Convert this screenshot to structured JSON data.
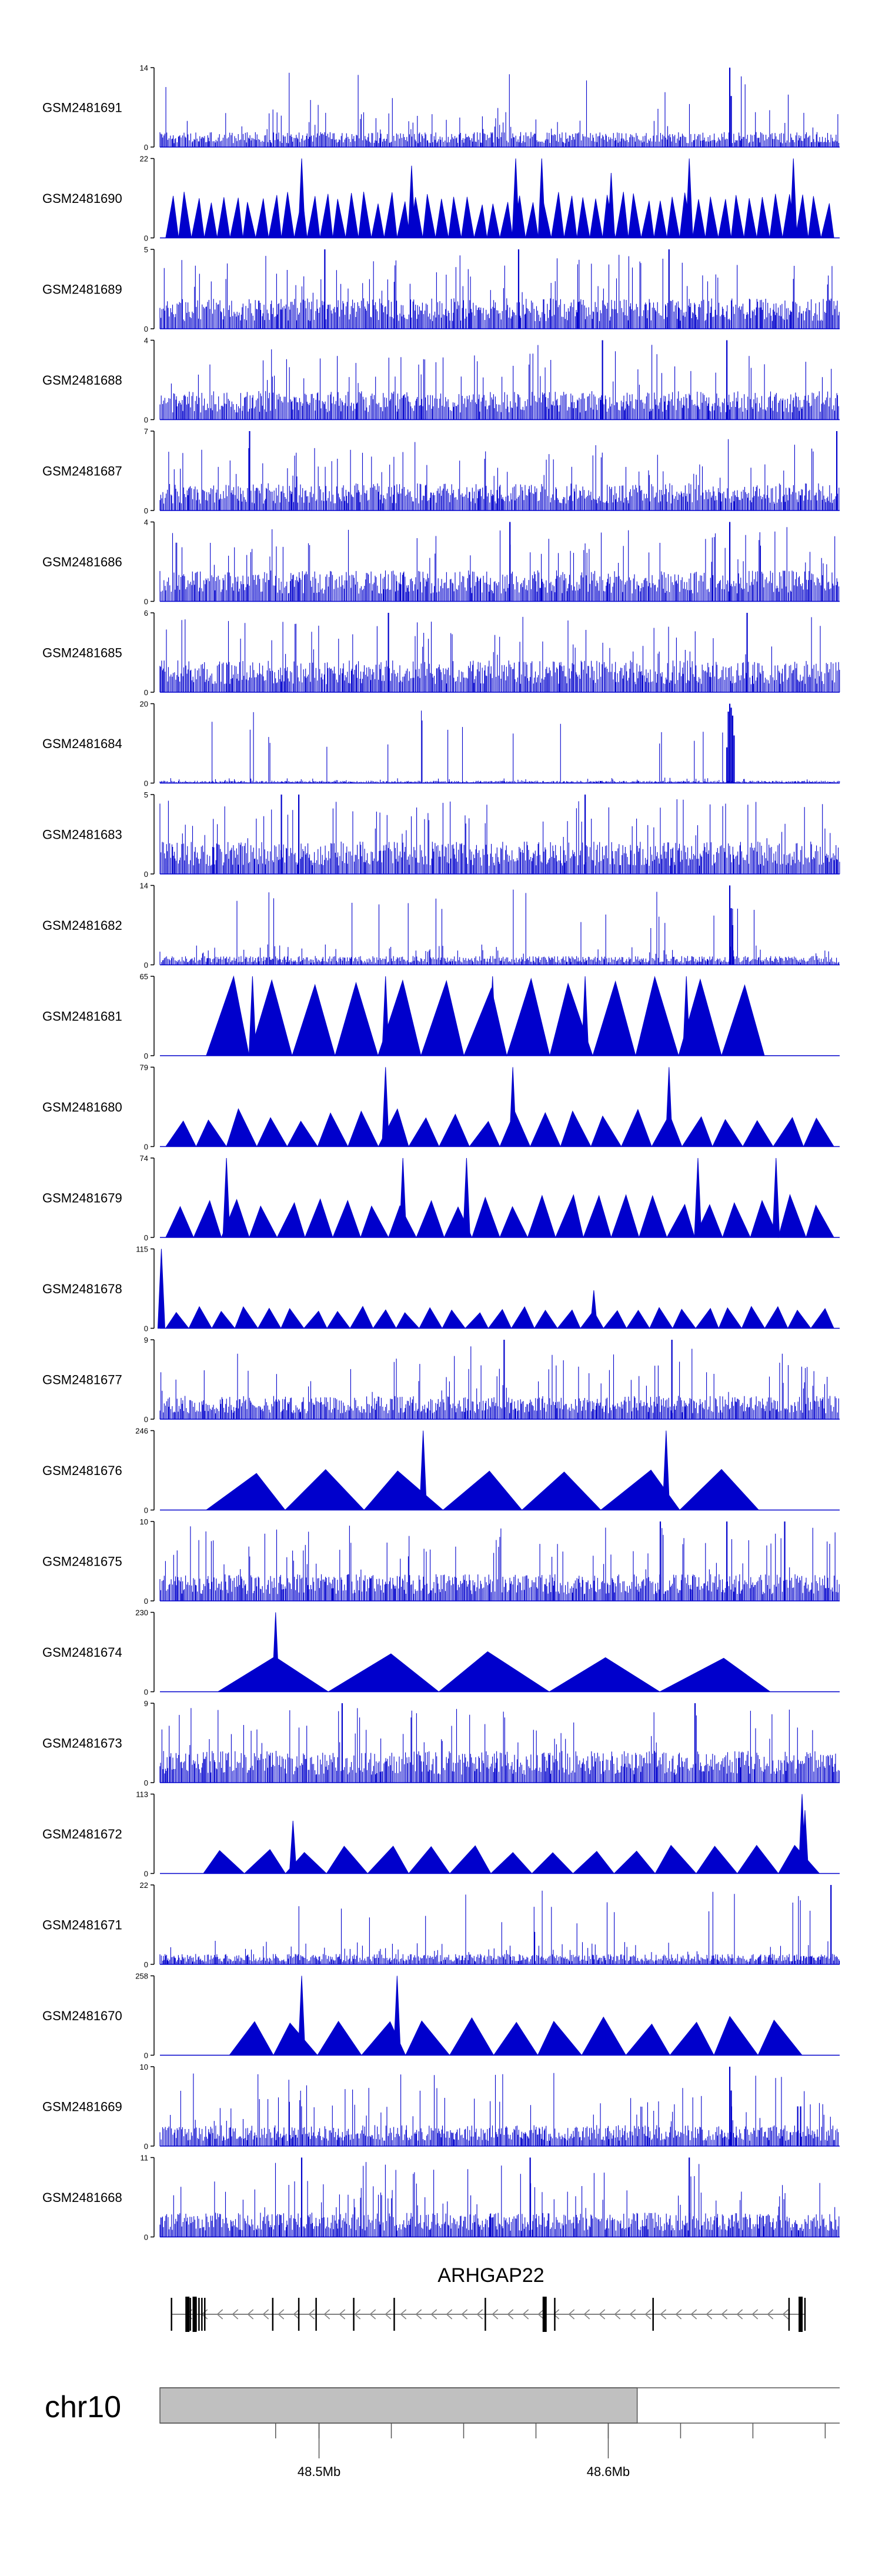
{
  "colors": {
    "signal": "#0000CC",
    "axis": "#000000",
    "gene": "#000000",
    "intron": "#808080",
    "ideogram_fill": "#C0C0C0",
    "ideogram_border": "#555555",
    "background": "#FFFFFF"
  },
  "chart_data": {
    "type": "area",
    "title": "",
    "xlabel": "chr10",
    "ylabel": "signal",
    "x_range_mb": [
      48.445,
      48.68
    ],
    "tracks": [
      {
        "name": "GSM2481691",
        "ylim": [
          0,
          14
        ],
        "style": "dense",
        "base": 2.2,
        "spikes": [
          [
            48.642,
            14
          ],
          [
            48.6425,
            9
          ]
        ]
      },
      {
        "name": "GSM2481690",
        "ylim": [
          0,
          22
        ],
        "style": "triangles",
        "n": 52,
        "ampMin": 9,
        "ampMax": 13,
        "peaks": [
          [
            48.494,
            22
          ],
          [
            48.568,
            22
          ],
          [
            48.577,
            22
          ],
          [
            48.628,
            22
          ],
          [
            48.664,
            22
          ],
          [
            48.532,
            20
          ],
          [
            48.601,
            18
          ]
        ]
      },
      {
        "name": "GSM2481689",
        "ylim": [
          0,
          5
        ],
        "style": "dense",
        "base": 1.6,
        "spikes": [
          [
            48.502,
            5
          ],
          [
            48.569,
            5
          ],
          [
            48.621,
            5
          ]
        ]
      },
      {
        "name": "GSM2481688",
        "ylim": [
          0,
          4
        ],
        "style": "dense",
        "base": 1.2,
        "spikes": [
          [
            48.598,
            4
          ],
          [
            48.641,
            4
          ]
        ]
      },
      {
        "name": "GSM2481687",
        "ylim": [
          0,
          7
        ],
        "style": "dense",
        "base": 2,
        "spikes": [
          [
            48.476,
            7
          ],
          [
            48.679,
            7
          ]
        ]
      },
      {
        "name": "GSM2481686",
        "ylim": [
          0,
          4
        ],
        "style": "dense",
        "base": 1.3,
        "spikes": [
          [
            48.566,
            4
          ],
          [
            48.642,
            4
          ]
        ]
      },
      {
        "name": "GSM2481685",
        "ylim": [
          0,
          6
        ],
        "style": "dense",
        "base": 2,
        "spikes": [
          [
            48.524,
            6
          ],
          [
            48.648,
            6
          ]
        ]
      },
      {
        "name": "GSM2481684",
        "ylim": [
          0,
          20
        ],
        "style": "dense",
        "base": 0.5,
        "spikes": [
          [
            48.6415,
            18
          ],
          [
            48.642,
            20
          ],
          [
            48.6425,
            19
          ],
          [
            48.643,
            17
          ],
          [
            48.6435,
            12
          ],
          [
            48.641,
            9
          ]
        ]
      },
      {
        "name": "GSM2481683",
        "ylim": [
          0,
          5
        ],
        "style": "dense",
        "base": 1.7,
        "spikes": [
          [
            48.487,
            5
          ],
          [
            48.493,
            5
          ],
          [
            48.592,
            5
          ]
        ]
      },
      {
        "name": "GSM2481682",
        "ylim": [
          0,
          14
        ],
        "style": "dense",
        "base": 1.3,
        "spikes": [
          [
            48.642,
            14
          ],
          [
            48.6425,
            10
          ],
          [
            48.643,
            7
          ]
        ]
      },
      {
        "name": "GSM2481681",
        "ylim": [
          0,
          65
        ],
        "style": "triangles",
        "n": 13,
        "ampMin": 55,
        "ampMax": 65,
        "start": 48.461,
        "end": 48.654,
        "peaks": [
          [
            48.477,
            65
          ],
          [
            48.523,
            65
          ],
          [
            48.56,
            65
          ],
          [
            48.592,
            65
          ],
          [
            48.627,
            65
          ]
        ]
      },
      {
        "name": "GSM2481680",
        "ylim": [
          0,
          79
        ],
        "style": "triangles",
        "n": 22,
        "ampMin": 25,
        "ampMax": 38,
        "peaks": [
          [
            48.523,
            79
          ],
          [
            48.567,
            79
          ],
          [
            48.621,
            79
          ]
        ]
      },
      {
        "name": "GSM2481679",
        "ylim": [
          0,
          74
        ],
        "style": "triangles",
        "n": 24,
        "ampMin": 28,
        "ampMax": 40,
        "peaks": [
          [
            48.468,
            74
          ],
          [
            48.529,
            74
          ],
          [
            48.551,
            74
          ],
          [
            48.631,
            74
          ],
          [
            48.658,
            74
          ]
        ]
      },
      {
        "name": "GSM2481678",
        "ylim": [
          0,
          115
        ],
        "style": "triangles",
        "n": 29,
        "ampMin": 22,
        "ampMax": 32,
        "peaks": [
          [
            48.4455,
            115
          ],
          [
            48.595,
            55
          ]
        ]
      },
      {
        "name": "GSM2481677",
        "ylim": [
          0,
          9
        ],
        "style": "dense",
        "base": 2.2,
        "spikes": [
          [
            48.564,
            9
          ],
          [
            48.622,
            9
          ]
        ]
      },
      {
        "name": "GSM2481676",
        "ylim": [
          0,
          246
        ],
        "style": "triangles",
        "n": 7,
        "ampMin": 110,
        "ampMax": 130,
        "start": 48.461,
        "end": 48.652,
        "peaks": [
          [
            48.536,
            246
          ],
          [
            48.62,
            246
          ]
        ]
      },
      {
        "name": "GSM2481675",
        "ylim": [
          0,
          10
        ],
        "style": "dense",
        "base": 2.8,
        "spikes": [
          [
            48.618,
            10
          ],
          [
            48.641,
            10
          ],
          [
            48.661,
            10
          ]
        ]
      },
      {
        "name": "GSM2481674",
        "ylim": [
          0,
          230
        ],
        "style": "triangles",
        "n": 5,
        "ampMin": 95,
        "ampMax": 120,
        "start": 48.465,
        "end": 48.656,
        "peaks": [
          [
            48.485,
            230
          ]
        ]
      },
      {
        "name": "GSM2481673",
        "ylim": [
          0,
          9
        ],
        "style": "dense",
        "base": 3,
        "spikes": [
          [
            48.508,
            9
          ],
          [
            48.63,
            9
          ]
        ]
      },
      {
        "name": "GSM2481672",
        "ylim": [
          0,
          113
        ],
        "style": "triangles",
        "n": 15,
        "ampMin": 28,
        "ampMax": 42,
        "start": 48.46,
        "end": 48.673,
        "peaks": [
          [
            48.491,
            75
          ],
          [
            48.667,
            113
          ],
          [
            48.668,
            90
          ]
        ]
      },
      {
        "name": "GSM2481671",
        "ylim": [
          0,
          22
        ],
        "style": "dense",
        "base": 2.4,
        "spikes": [
          [
            48.677,
            22
          ],
          [
            48.5745,
            9
          ]
        ]
      },
      {
        "name": "GSM2481670",
        "ylim": [
          0,
          258
        ],
        "style": "triangles",
        "n": 13,
        "ampMin": 95,
        "ampMax": 130,
        "start": 48.469,
        "end": 48.667,
        "peaks": [
          [
            48.494,
            258
          ],
          [
            48.527,
            258
          ]
        ]
      },
      {
        "name": "GSM2481669",
        "ylim": [
          0,
          10
        ],
        "style": "dense",
        "base": 2.2,
        "spikes": [
          [
            48.642,
            10
          ],
          [
            48.6425,
            7
          ],
          [
            48.6655,
            5
          ],
          [
            48.6665,
            5
          ]
        ]
      },
      {
        "name": "GSM2481668",
        "ylim": [
          0,
          11
        ],
        "style": "dense",
        "base": 2.8,
        "spikes": [
          [
            48.494,
            11
          ],
          [
            48.573,
            11
          ],
          [
            48.628,
            11
          ]
        ]
      }
    ],
    "gene": {
      "name": "ARHGAP22",
      "strand": "-",
      "start": 48.449,
      "end": 48.668,
      "exons": [
        48.449,
        48.4545,
        48.4555,
        48.457,
        48.4575,
        48.4585,
        48.4595,
        48.4605,
        48.484,
        48.493,
        48.499,
        48.512,
        48.526,
        48.5575,
        48.578,
        48.5815,
        48.6155,
        48.6625,
        48.6665,
        48.668
      ],
      "thick_exons": [
        48.4545,
        48.457,
        48.578,
        48.6665
      ]
    },
    "ideogram": {
      "chromosome": "chr10",
      "highlight_range_mb": [
        48.445,
        48.61
      ],
      "ticks_mb": [
        48.485,
        48.5,
        48.525,
        48.55,
        48.575,
        48.6,
        48.625,
        48.65,
        48.675
      ],
      "tick_labels": [
        {
          "mb": 48.5,
          "label": "48.5Mb"
        },
        {
          "mb": 48.6,
          "label": "48.6Mb"
        }
      ]
    }
  }
}
